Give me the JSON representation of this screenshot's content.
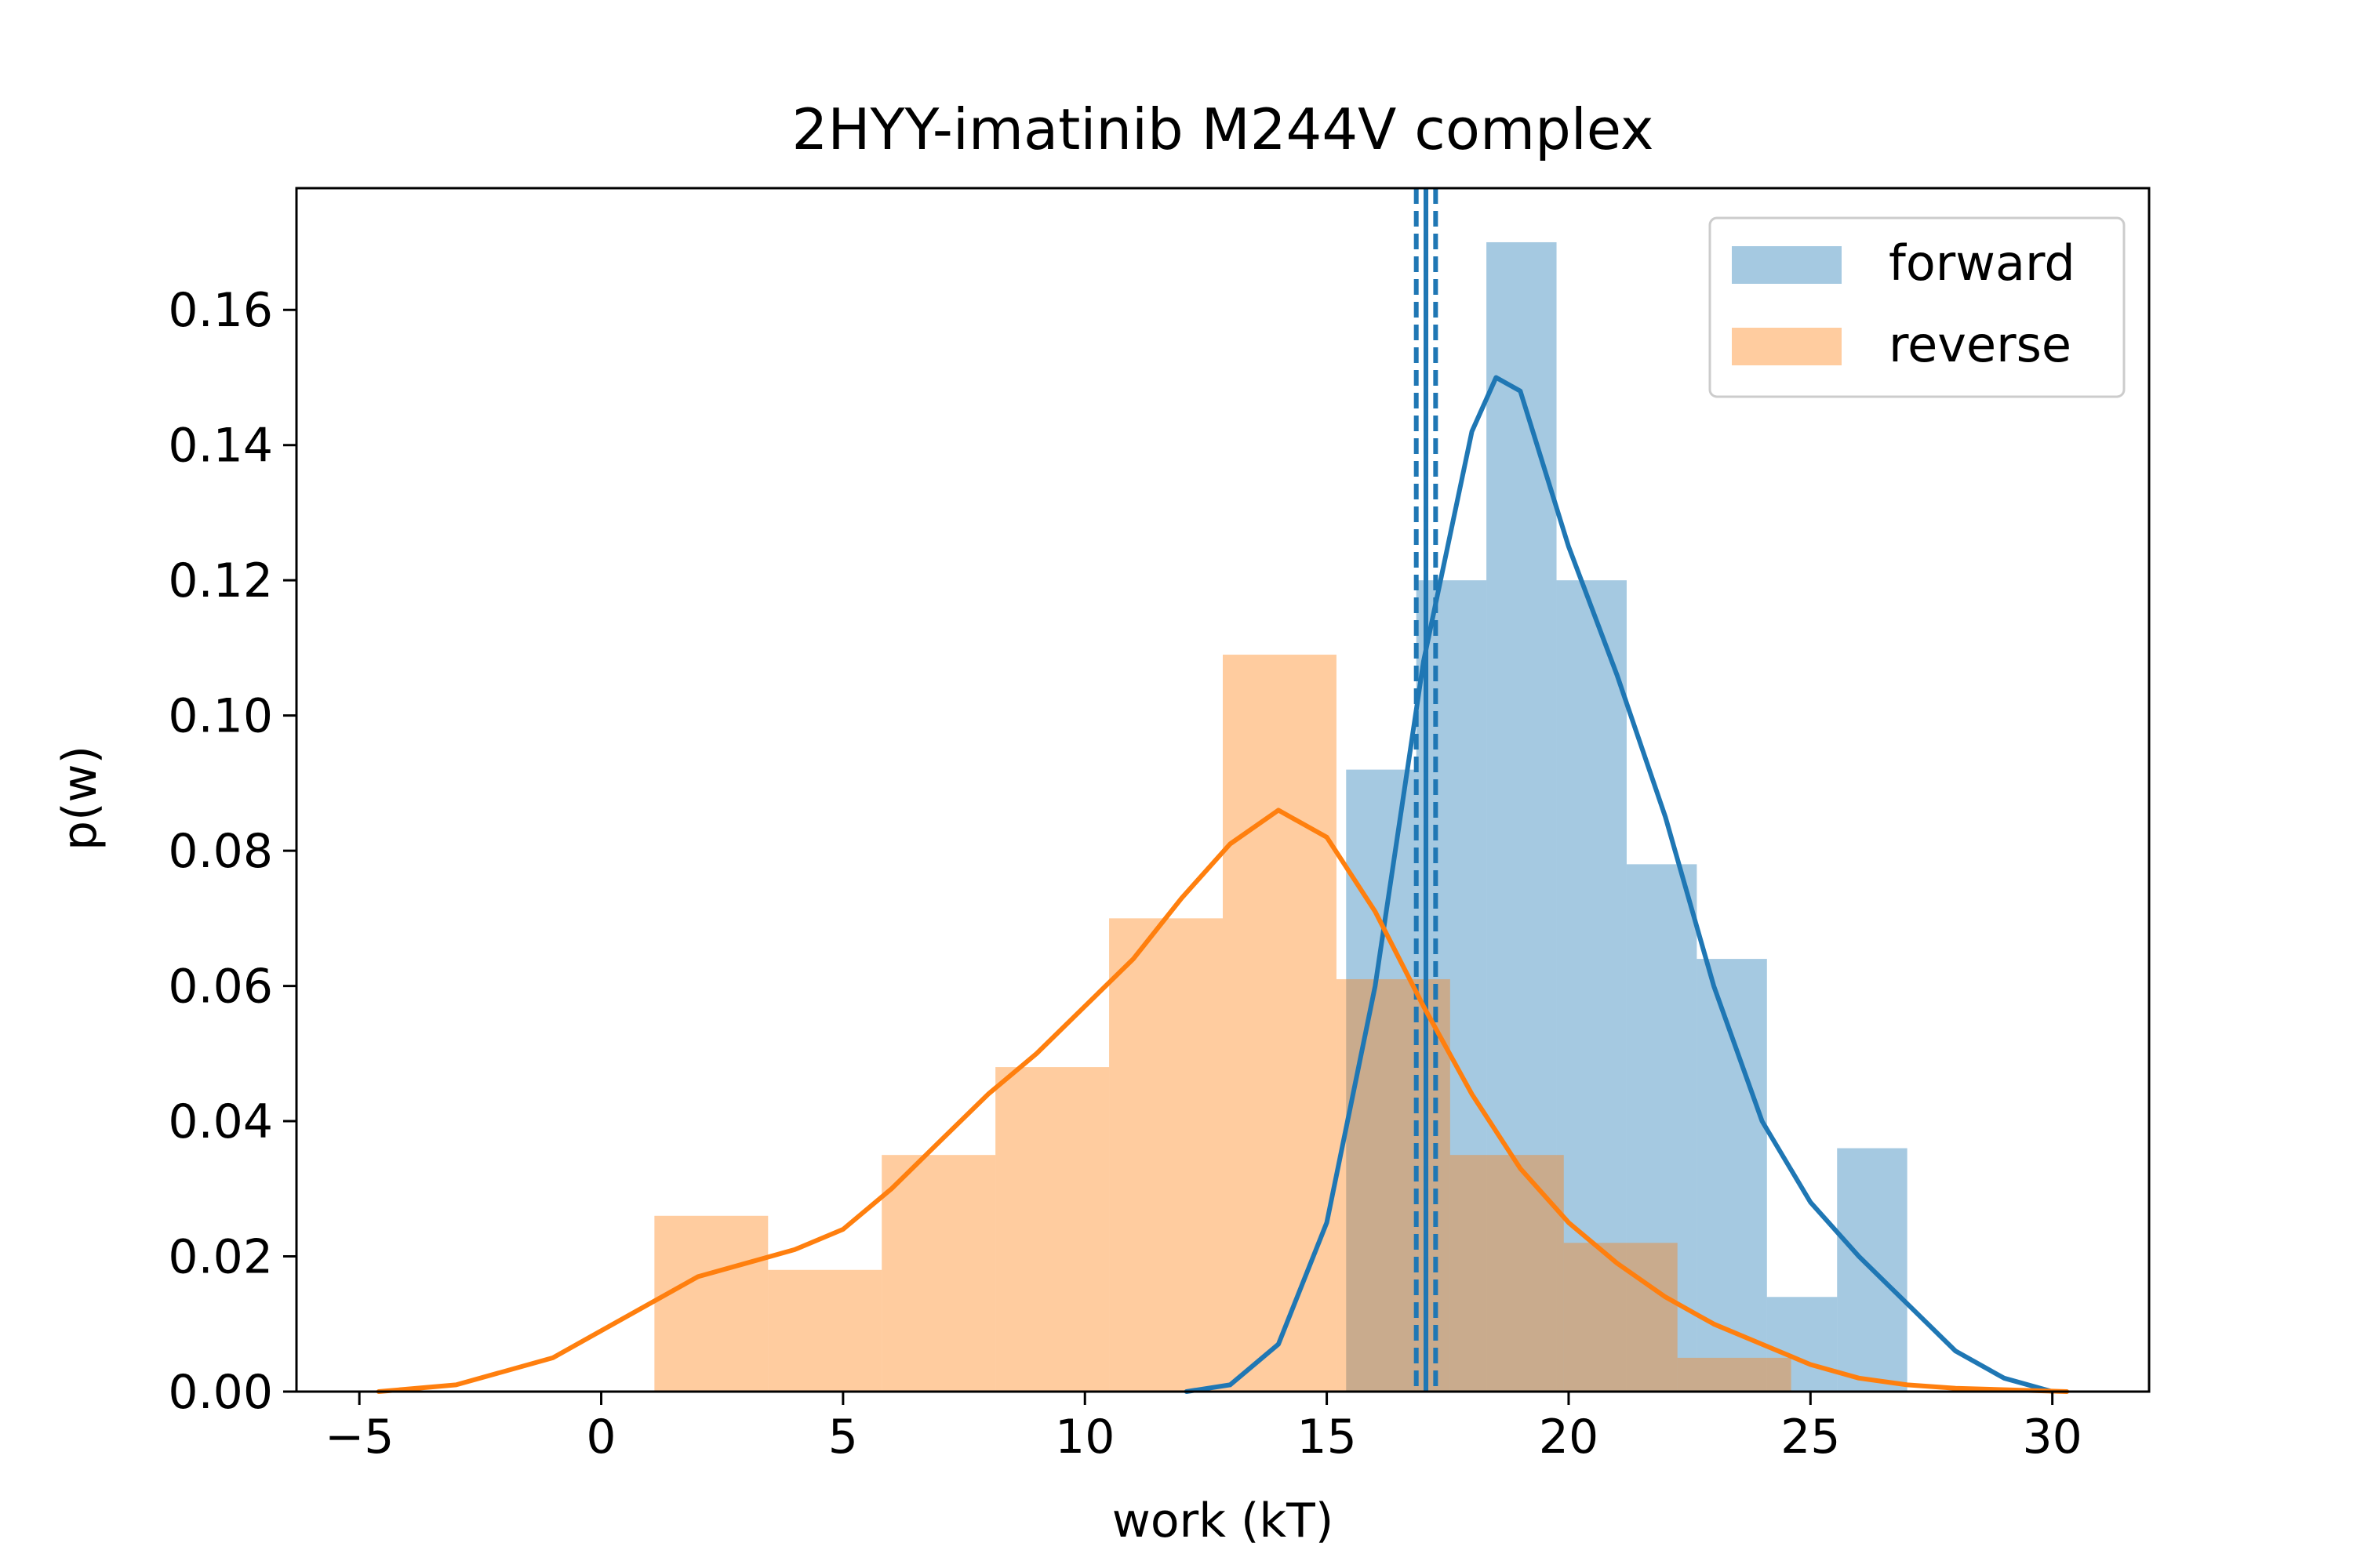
{
  "chart_data": {
    "type": "histogram",
    "title": "2HYY-imatinib M244V complex",
    "xlabel": "work (kT)",
    "ylabel": "p(w)",
    "xlim": [
      -6.3,
      32
    ],
    "ylim": [
      0,
      0.178
    ],
    "x_ticks": [
      -5,
      0,
      5,
      10,
      15,
      20,
      25,
      30
    ],
    "x_tick_labels": [
      "−5",
      "0",
      "5",
      "10",
      "15",
      "20",
      "25",
      "30"
    ],
    "y_ticks": [
      0,
      0.02,
      0.04,
      0.06,
      0.08,
      0.1,
      0.12,
      0.14,
      0.16
    ],
    "y_tick_labels": [
      "0.00",
      "0.02",
      "0.04",
      "0.06",
      "0.08",
      "0.10",
      "0.12",
      "0.14",
      "0.16"
    ],
    "grid": false,
    "legend_position": "top-right",
    "series": [
      {
        "name": "forward",
        "color": "#1f77b4",
        "bin_edges": [
          15.4,
          16.85,
          18.3,
          19.75,
          21.2,
          22.65,
          24.1,
          25.55,
          27.0
        ],
        "bin_heights": [
          0.092,
          0.12,
          0.17,
          0.12,
          0.078,
          0.064,
          0.014,
          0.036
        ],
        "kde": {
          "x": [
            12.1,
            13.0,
            14.0,
            15.0,
            16.0,
            17.0,
            18.0,
            18.5,
            19.0,
            20.0,
            21.0,
            22.0,
            23.0,
            24.0,
            25.0,
            26.0,
            27.0,
            28.0,
            29.0,
            30.0
          ],
          "y": [
            0.0,
            0.001,
            0.007,
            0.025,
            0.06,
            0.108,
            0.142,
            0.15,
            0.148,
            0.125,
            0.106,
            0.085,
            0.06,
            0.04,
            0.028,
            0.02,
            0.013,
            0.006,
            0.002,
            0.0
          ]
        },
        "mean_lines": [
          16.85,
          17.25
        ],
        "mean_line_center": 17.05
      },
      {
        "name": "reverse",
        "color": "#ff7f0e",
        "bin_edges": [
          1.1,
          3.45,
          5.8,
          8.15,
          10.5,
          12.85,
          15.2,
          17.55,
          19.9,
          22.25,
          24.6
        ],
        "bin_heights": [
          0.026,
          0.018,
          0.035,
          0.048,
          0.07,
          0.109,
          0.061,
          0.035,
          0.022,
          0.005
        ],
        "kde": {
          "x": [
            -4.6,
            -3.0,
            -1.0,
            0.0,
            1.0,
            2.0,
            3.0,
            4.0,
            5.0,
            6.0,
            7.0,
            8.0,
            9.0,
            10.0,
            11.0,
            12.0,
            13.0,
            14.0,
            15.0,
            16.0,
            17.0,
            18.0,
            19.0,
            20.0,
            21.0,
            22.0,
            23.0,
            24.0,
            25.0,
            26.0,
            27.0,
            28.0,
            30.3
          ],
          "y": [
            0.0,
            0.001,
            0.005,
            0.009,
            0.013,
            0.017,
            0.019,
            0.021,
            0.024,
            0.03,
            0.037,
            0.044,
            0.05,
            0.057,
            0.064,
            0.073,
            0.081,
            0.086,
            0.082,
            0.071,
            0.057,
            0.044,
            0.033,
            0.025,
            0.019,
            0.014,
            0.01,
            0.007,
            0.004,
            0.002,
            0.001,
            0.0005,
            0.0
          ]
        },
        "mean_lines": [
          17.05
        ],
        "mean_line_center": 17.05
      }
    ]
  }
}
